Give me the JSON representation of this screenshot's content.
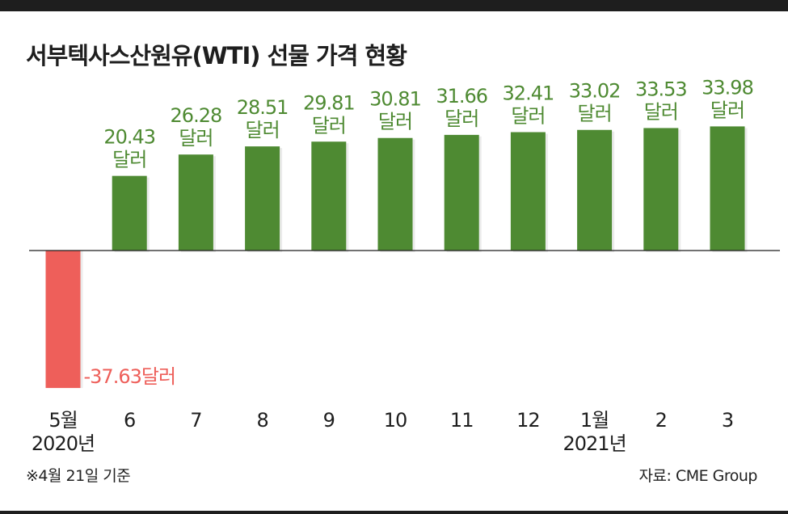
{
  "title": "서부텍사스산원유(WTI) 선물 가격 현황",
  "note": "※4월 21일 기준",
  "source": "자료: CME Group",
  "colors": {
    "positive": "#4e8a32",
    "negative": "#ee5f5a",
    "text": "#1e1e1e"
  },
  "chart_data": {
    "type": "bar",
    "categories": [
      "5월",
      "6",
      "7",
      "8",
      "9",
      "10",
      "11",
      "12",
      "1월",
      "2",
      "3"
    ],
    "year_labels": [
      "2020년",
      "",
      "",
      "",
      "",
      "",
      "",
      "",
      "2021년",
      "",
      ""
    ],
    "values": [
      -37.63,
      20.43,
      26.28,
      28.51,
      29.81,
      30.81,
      31.66,
      32.41,
      33.02,
      33.53,
      33.98
    ],
    "value_labels": [
      "-37.63달러",
      "20.43",
      "26.28",
      "28.51",
      "29.81",
      "30.81",
      "31.66",
      "32.41",
      "33.02",
      "33.53",
      "33.98"
    ],
    "unit_label": "달러",
    "title": "서부텍사스산원유(WTI) 선물 가격 현황",
    "xlabel": "",
    "ylabel": "",
    "ylim": [
      -37.63,
      33.98
    ],
    "grid": false,
    "legend": "none"
  }
}
